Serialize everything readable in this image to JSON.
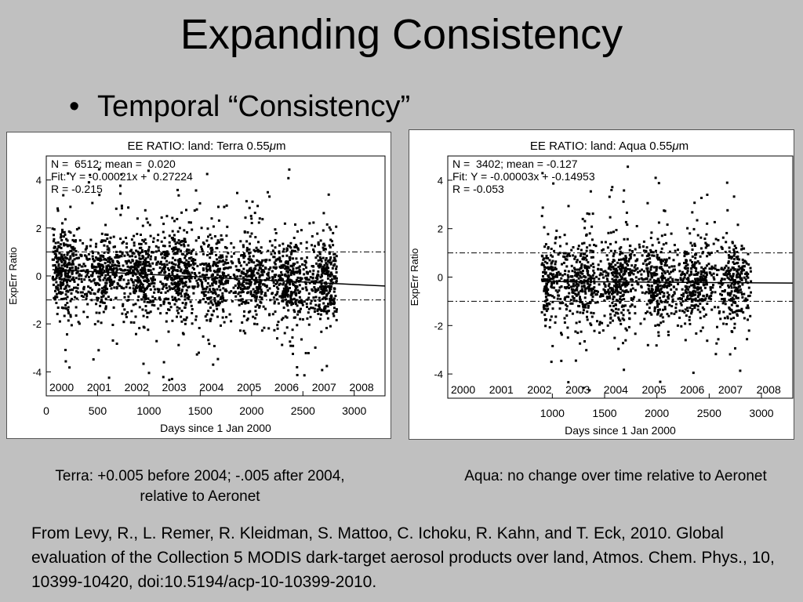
{
  "slide": {
    "title": "Expanding Consistency",
    "bullet": "Temporal “Consistency”",
    "caption_terra": "Terra: +0.005 before 2004; -.005 after 2004, relative to Aeronet",
    "caption_aqua": "Aqua: no change over time relative to Aeronet",
    "citation": "From Levy, R., L. Remer, R. Kleidman, S. Mattoo, C. Ichoku, R. Kahn, and T. Eck, 2010. Global evaluation of the Collection 5 MODIS dark-target aerosol products over land, Atmos. Chem. Phys., 10, 10399-10420, doi:10.5194/acp-10-10399-2010."
  },
  "chart_data": [
    {
      "type": "scatter",
      "title": "EE RATIO: land: Terra 0.55μm",
      "xlabel": "Days since 1 Jan 2000",
      "ylabel": "ExpErr Ratio",
      "xlim": [
        0,
        3300
      ],
      "ylim": [
        -5,
        5
      ],
      "xticks": [
        0,
        500,
        1000,
        1500,
        2000,
        2500,
        3000
      ],
      "yticks": [
        -4,
        -2,
        0,
        2,
        4
      ],
      "year_labels": [
        "2000",
        "2001",
        "2002",
        "2003",
        "2004",
        "2005",
        "2006",
        "2007",
        "2008"
      ],
      "stats": [
        "N =  6512; mean =  0.020",
        "Fit: Y = -0.00021x +  0.27224",
        "R = -0.215"
      ],
      "fit": {
        "slope": -0.00021,
        "intercept": 0.27224
      },
      "reference_lines": [
        -1,
        1
      ],
      "data_start_day": 60,
      "data_end_day": 2830,
      "n_points": 6512,
      "mean": 0.02,
      "grid": false,
      "marker_color": "#000000"
    },
    {
      "type": "scatter",
      "title": "EE RATIO: land: Aqua 0.55μm",
      "xlabel": "Days since 1 Jan 2000",
      "ylabel": "ExpErr Ratio",
      "xlim": [
        0,
        3300
      ],
      "ylim": [
        -5,
        5
      ],
      "xticks": [
        1000,
        1500,
        2000,
        2500,
        3000
      ],
      "yticks": [
        -4,
        -2,
        0,
        2,
        4
      ],
      "year_labels": [
        "2000",
        "2001",
        "2002",
        "2003",
        "2004",
        "2005",
        "2006",
        "2007",
        "2008"
      ],
      "stats": [
        "N =  3402; mean = -0.127",
        "Fit: Y = -0.00003x + -0.14953",
        "R = -0.053"
      ],
      "fit": {
        "slope": -3e-05,
        "intercept": -0.14953
      },
      "reference_lines": [
        -1,
        1
      ],
      "data_start_day": 900,
      "data_end_day": 2900,
      "n_points": 3402,
      "mean": -0.127,
      "grid": false,
      "marker_color": "#000000"
    }
  ]
}
